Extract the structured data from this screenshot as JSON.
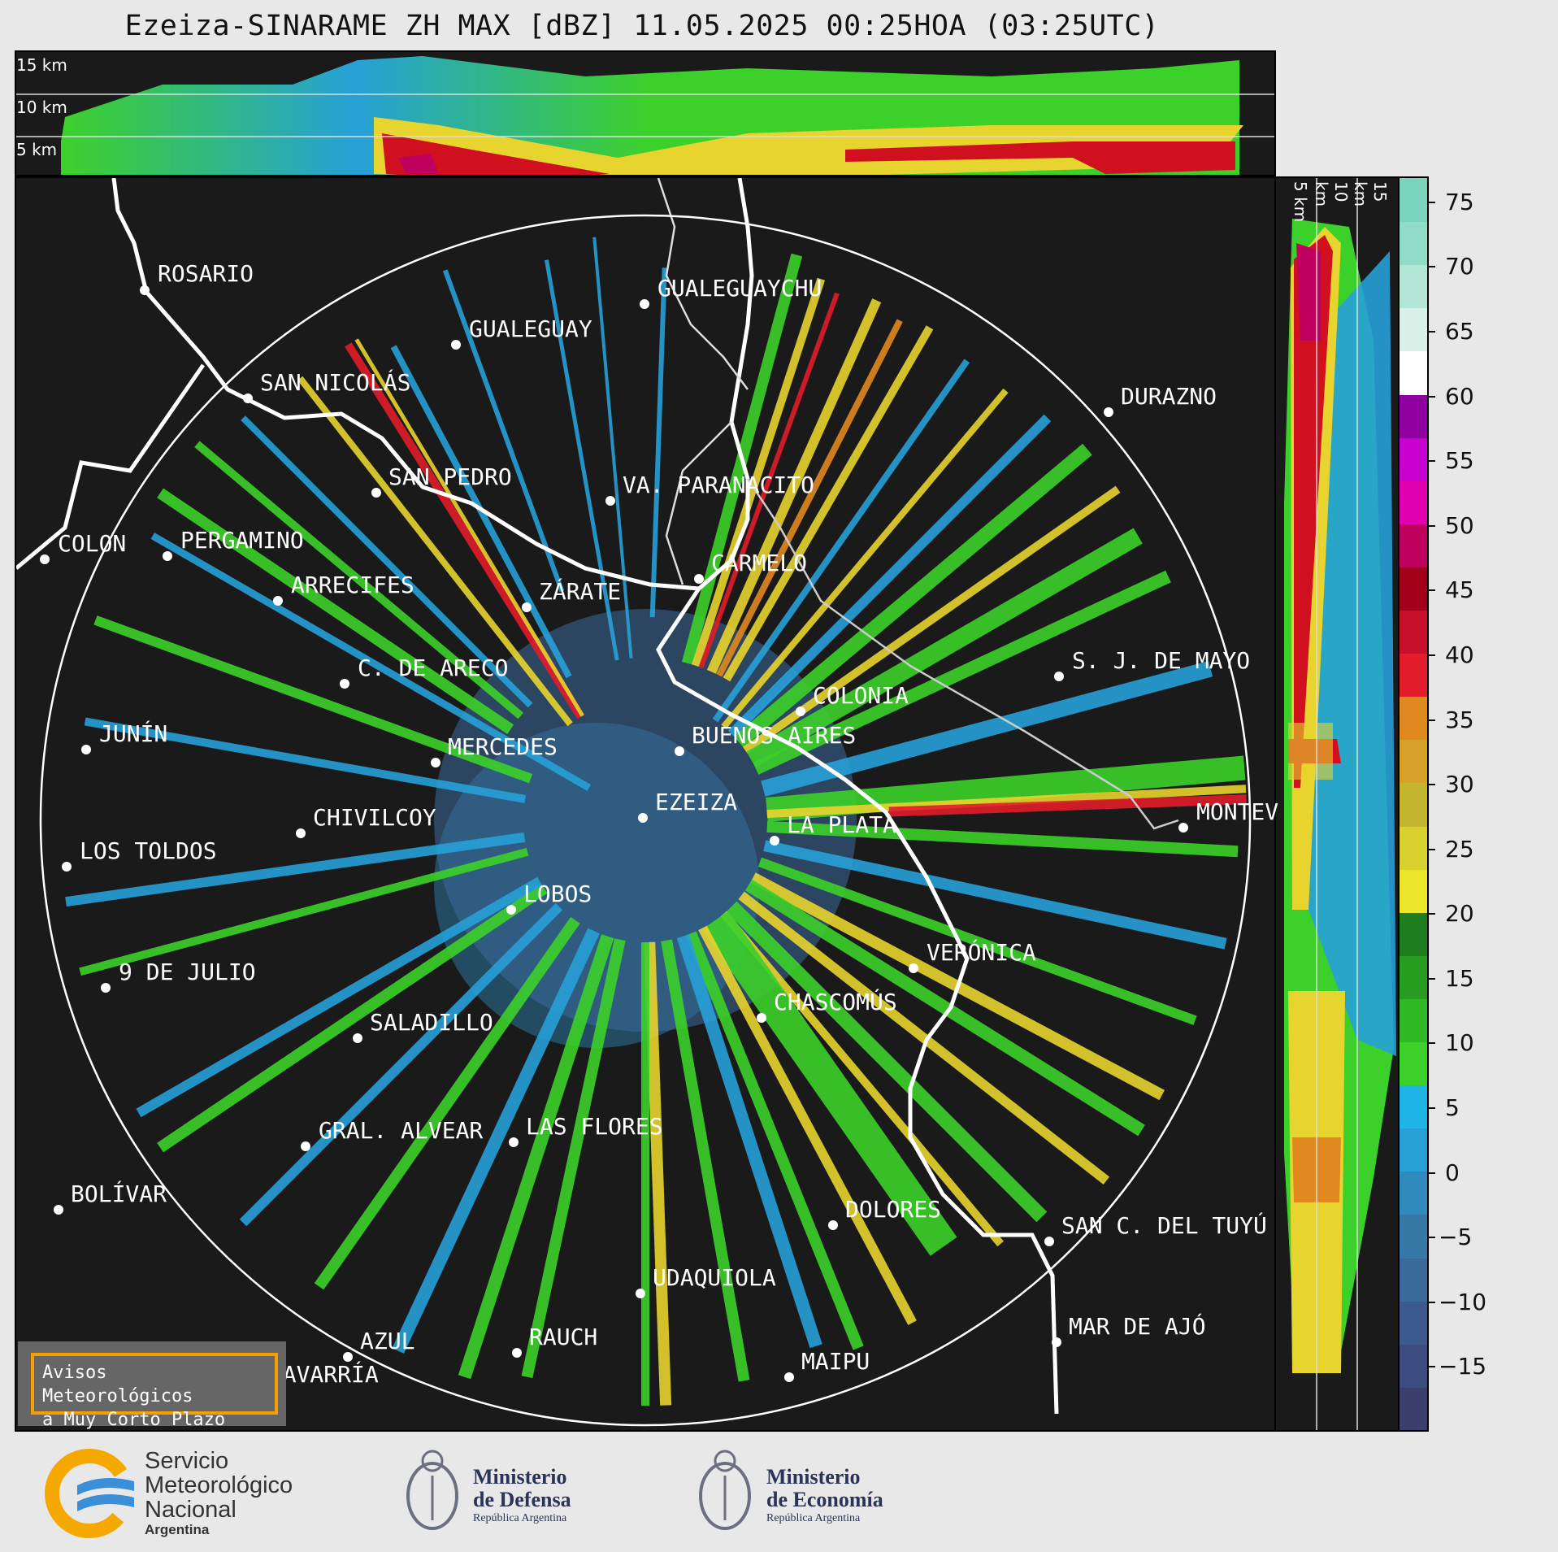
{
  "title": "Ezeiza-SINARAME ZH MAX [dBZ] 11.05.2025 00:25HOA (03:25UTC)",
  "top_panel": {
    "height_labels": [
      "15 km",
      "10 km",
      "5 km"
    ]
  },
  "side_panel": {
    "height_labels": [
      "5 km",
      "10 km",
      "15 km"
    ]
  },
  "colorbar": {
    "ticks": [
      "75",
      "70",
      "65",
      "60",
      "55",
      "50",
      "45",
      "40",
      "35",
      "30",
      "25",
      "20",
      "15",
      "10",
      "5",
      "0",
      "−5",
      "−10",
      "−15"
    ],
    "min": -20,
    "max": 77
  },
  "cities": [
    {
      "name": "ROSARIO"
    },
    {
      "name": "GUALEGUAYCHU"
    },
    {
      "name": "GUALEGUAY"
    },
    {
      "name": "SAN NICOLÁS"
    },
    {
      "name": "DURAZNO"
    },
    {
      "name": "SAN PEDRO"
    },
    {
      "name": "VA. PARANACITO"
    },
    {
      "name": "COLON"
    },
    {
      "name": "PERGAMINO"
    },
    {
      "name": "CARMELO"
    },
    {
      "name": "ARRECIFES"
    },
    {
      "name": "ZÁRATE"
    },
    {
      "name": "S. J. DE MAYO"
    },
    {
      "name": "C. DE ARECO"
    },
    {
      "name": "COLONIA"
    },
    {
      "name": "JUNÍN"
    },
    {
      "name": "BUENOS AIRES"
    },
    {
      "name": "MERCEDES"
    },
    {
      "name": "EZEIZA"
    },
    {
      "name": "MONTEV"
    },
    {
      "name": "CHIVILCOY"
    },
    {
      "name": "LA PLATA"
    },
    {
      "name": "LOS TOLDOS"
    },
    {
      "name": "LOBOS"
    },
    {
      "name": "VERÓNICA"
    },
    {
      "name": "9 DE JULIO"
    },
    {
      "name": "CHASCOMÚS"
    },
    {
      "name": "SALADILLO"
    },
    {
      "name": "GRAL. ALVEAR"
    },
    {
      "name": "LAS FLORES"
    },
    {
      "name": "BOLÍVAR"
    },
    {
      "name": "DOLORES"
    },
    {
      "name": "SAN C. DEL TUYÚ"
    },
    {
      "name": "UDAQUIOLA"
    },
    {
      "name": "MAR DE AJÓ"
    },
    {
      "name": "AZUL"
    },
    {
      "name": "RAUCH"
    },
    {
      "name": "MAIPU"
    },
    {
      "name": "OLAVARRÍA"
    }
  ],
  "warning": {
    "line1": "Avisos Meteorológicos",
    "line2": "a Muy Corto Plazo"
  },
  "logos": {
    "smn": {
      "line1": "Servicio",
      "line2": "Meteorológico",
      "line3": "Nacional",
      "line4": "Argentina"
    },
    "defensa": {
      "line1": "Ministerio",
      "line2": "de Defensa",
      "line3": "República Argentina"
    },
    "economia": {
      "line1": "Ministerio",
      "line2": "de Economía",
      "line3": "República Argentina"
    }
  },
  "colors": {
    "background": "#1a1a1a",
    "scale": [
      "#3b3f6e",
      "#3c4b80",
      "#3c5a8e",
      "#3a6a9a",
      "#3679a8",
      "#2f8abd",
      "#27a0d8",
      "#1fb4e6",
      "#3cd12a",
      "#2fb925",
      "#269d21",
      "#1e7d1c",
      "#ebe62a",
      "#d9d12e",
      "#c4b52e",
      "#d7a22a",
      "#e0891f",
      "#e21c2a",
      "#c8102a",
      "#a00018",
      "#c0005e",
      "#e000b0",
      "#c800d0",
      "#9000a0",
      "#ffffff",
      "#d8f0e8",
      "#b4e6d8",
      "#90dcc8",
      "#7cd4bc"
    ]
  }
}
